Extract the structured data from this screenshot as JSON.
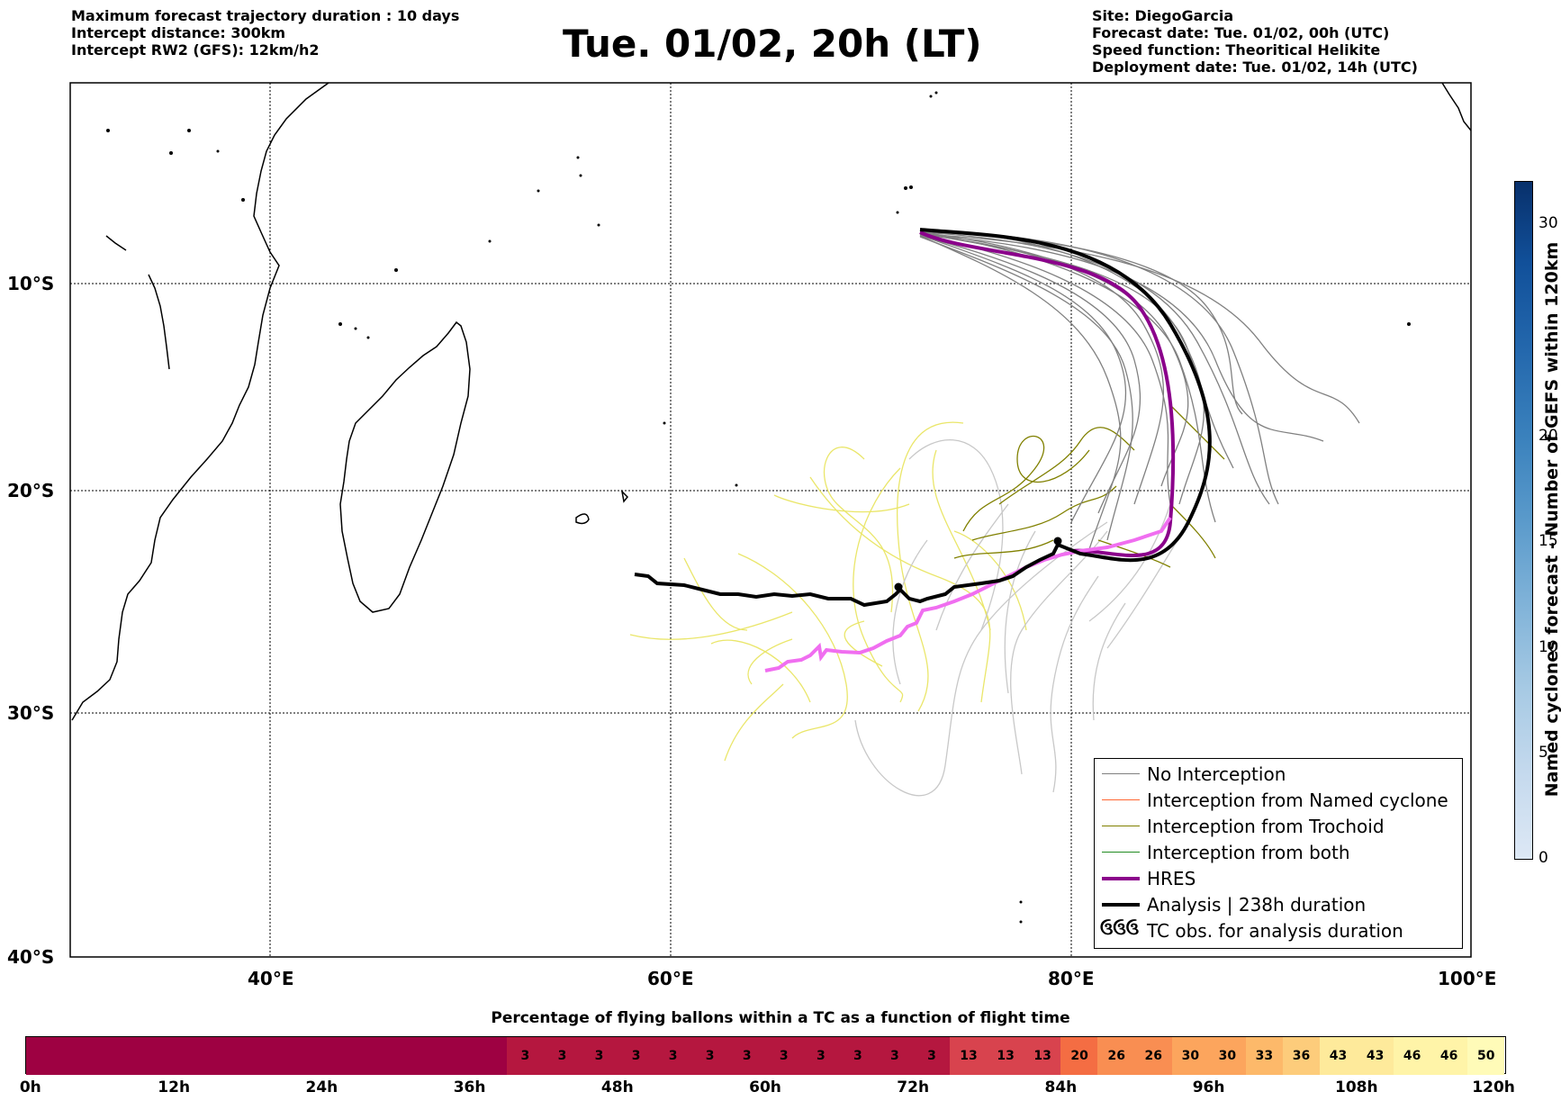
{
  "header": {
    "left": [
      "Maximum forecast trajectory duration : 10 days",
      "Intercept distance: 300km",
      "Intercept RW2 (GFS):  12km/h2"
    ],
    "title": "Tue. 01/02, 20h (LT)",
    "right": [
      "Site: DiegoGarcia",
      "Forecast date: Tue. 01/02, 00h (UTC)",
      "Speed function: Theoritical Helikite",
      "Deployment date: Tue. 01/02, 14h (UTC)"
    ]
  },
  "map": {
    "lon_ticks": [
      "40°E",
      "60°E",
      "80°E",
      "100°E"
    ],
    "lat_ticks": [
      "10°S",
      "20°S",
      "30°S",
      "40°S"
    ],
    "lon_range": [
      30,
      100
    ],
    "lat_range": [
      1.5,
      -40
    ]
  },
  "legend": {
    "items": [
      {
        "label": "No Interception",
        "color": "#808080"
      },
      {
        "label": "Interception from Named cyclone",
        "color": "#ff6633"
      },
      {
        "label": "Interception from Trochoid",
        "color": "#808000"
      },
      {
        "label": "Interception from both",
        "color": "#228b22"
      },
      {
        "label": "HRES",
        "color": "#8b008b"
      },
      {
        "label": "Analysis | 238h duration",
        "color": "#000000"
      },
      {
        "label": "TC obs. for analysis duration",
        "icon": "cyclone-symbol-icon",
        "symbol": "ઉઉઉ"
      }
    ]
  },
  "colorbar": {
    "label": "Named cyclones forecast - Number of GEFS within 120km",
    "ticks": [
      "0",
      "5",
      "10",
      "15",
      "20",
      "30"
    ],
    "range": [
      0,
      32
    ]
  },
  "bottom_chart": {
    "title": "Percentage of flying ballons within a TC as a function of flight time",
    "time_ticks": [
      "0h",
      "12h",
      "24h",
      "36h",
      "48h",
      "60h",
      "72h",
      "84h",
      "96h",
      "108h",
      "120h"
    ],
    "segments": [
      {
        "value": "",
        "color": "#9e0142"
      },
      {
        "value": "3",
        "color": "#b5173f"
      },
      {
        "value": "3",
        "color": "#b5173f"
      },
      {
        "value": "3",
        "color": "#b5173f"
      },
      {
        "value": "3",
        "color": "#b5173f"
      },
      {
        "value": "3",
        "color": "#b5173f"
      },
      {
        "value": "3",
        "color": "#b5173f"
      },
      {
        "value": "3",
        "color": "#b5173f"
      },
      {
        "value": "3",
        "color": "#b5173f"
      },
      {
        "value": "3",
        "color": "#b5173f"
      },
      {
        "value": "3",
        "color": "#b5173f"
      },
      {
        "value": "3",
        "color": "#b5173f"
      },
      {
        "value": "3",
        "color": "#b5173f"
      },
      {
        "value": "13",
        "color": "#d8434e"
      },
      {
        "value": "13",
        "color": "#d8434e"
      },
      {
        "value": "13",
        "color": "#d8434e"
      },
      {
        "value": "20",
        "color": "#f46d43"
      },
      {
        "value": "26",
        "color": "#f98e52"
      },
      {
        "value": "26",
        "color": "#f98e52"
      },
      {
        "value": "30",
        "color": "#fca55d"
      },
      {
        "value": "30",
        "color": "#fca55d"
      },
      {
        "value": "33",
        "color": "#fdb96a"
      },
      {
        "value": "36",
        "color": "#fdcc7b"
      },
      {
        "value": "43",
        "color": "#feea9b"
      },
      {
        "value": "43",
        "color": "#feea9b"
      },
      {
        "value": "46",
        "color": "#fff4a8"
      },
      {
        "value": "46",
        "color": "#fff4a8"
      },
      {
        "value": "50",
        "color": "#fffbb8"
      }
    ]
  }
}
